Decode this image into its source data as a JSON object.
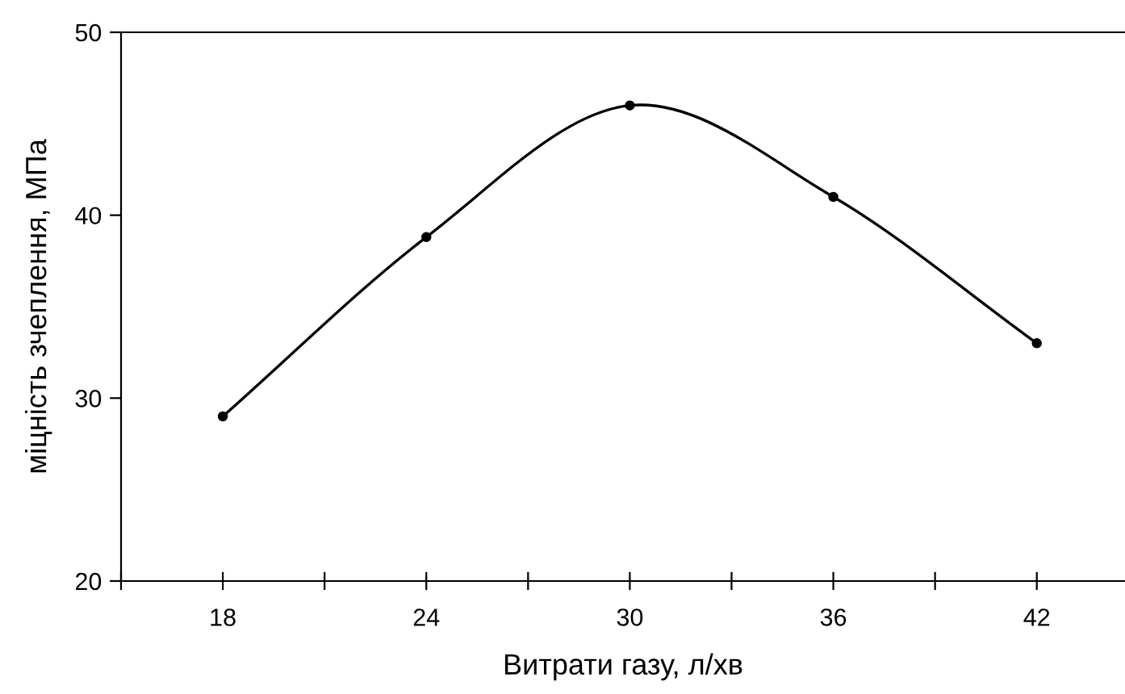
{
  "chart_data": {
    "type": "line",
    "xlabel": "Витрати газу, л/хв",
    "ylabel": "міцність зчеплення, МПа",
    "x": [
      18,
      24,
      30,
      36,
      42
    ],
    "series": [
      {
        "color": "#000000",
        "values": [
          29,
          38.8,
          46,
          41,
          33
        ]
      }
    ],
    "xlim": [
      15,
      44.6
    ],
    "xticks": [
      {
        "value": 15,
        "label": null
      },
      18,
      {
        "value": 21,
        "label": null
      },
      24,
      {
        "value": 27,
        "label": null
      },
      30,
      {
        "value": 33,
        "label": null
      },
      36,
      {
        "value": 39,
        "label": null
      },
      42
    ],
    "ylim": [
      20,
      50
    ],
    "yticks": [
      20,
      30,
      40,
      50
    ],
    "marker": "circle",
    "line_style": "solid",
    "grid": false,
    "legend": false
  }
}
